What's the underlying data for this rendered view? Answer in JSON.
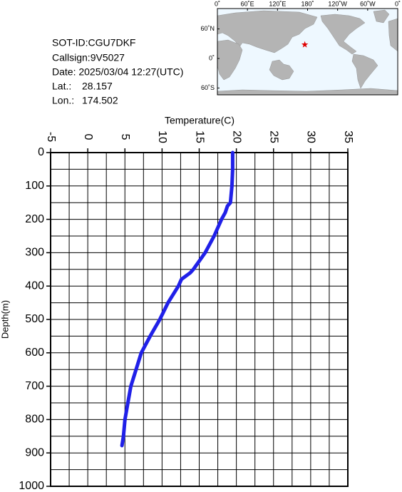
{
  "info": {
    "id": "SOT-ID:CGU7DKF",
    "callsign": "Callsign:9V5027",
    "date": "Date:  2025/03/04 12:27(UTC)",
    "lat_label": "Lat.:",
    "lat": 28.157,
    "lon_label": "Lon.:",
    "lon": 174.502
  },
  "map": {
    "lon_ticks": [
      {
        "value": 0,
        "label": "0˚"
      },
      {
        "value": 60,
        "label": "60˚E"
      },
      {
        "value": 120,
        "label": "120˚E"
      },
      {
        "value": 180,
        "label": "180˚"
      },
      {
        "value": 240,
        "label": "120˚W"
      },
      {
        "value": 300,
        "label": "60˚W"
      },
      {
        "value": 360,
        "label": "0˚"
      }
    ],
    "lat_ticks": [
      {
        "value": 60,
        "label": "60˚N"
      },
      {
        "value": 0,
        "label": "0˚"
      },
      {
        "value": -60,
        "label": "60˚S"
      }
    ]
  },
  "chart_data": {
    "type": "line",
    "x_label": "Temperature(C)",
    "y_label": "Depth(m)",
    "series": [
      {
        "color": "#2020e8",
        "x": [
          19.5,
          19.5,
          19.4,
          19.2,
          18.8,
          18.5,
          18.0,
          17.0,
          15.8,
          14.2,
          13.8,
          12.6,
          12.2,
          10.8,
          9.7,
          8.4,
          7.2,
          6.5,
          5.8,
          5.4,
          5.0,
          4.8,
          4.6
        ],
        "values": [
          0,
          50,
          100,
          150,
          160,
          180,
          200,
          250,
          300,
          350,
          360,
          380,
          400,
          450,
          500,
          550,
          600,
          650,
          700,
          750,
          800,
          850,
          878
        ]
      }
    ],
    "xlim": [
      -5,
      35
    ],
    "xticks": [
      -5,
      0,
      5,
      10,
      15,
      20,
      25,
      30,
      35
    ],
    "ylim": [
      0,
      1000
    ],
    "yticks": [
      0,
      100,
      200,
      300,
      400,
      500,
      600,
      700,
      800,
      900,
      1000
    ],
    "y_inverted": true,
    "grid": true,
    "grid_x_step": 2.5,
    "grid_y_step": 50
  }
}
